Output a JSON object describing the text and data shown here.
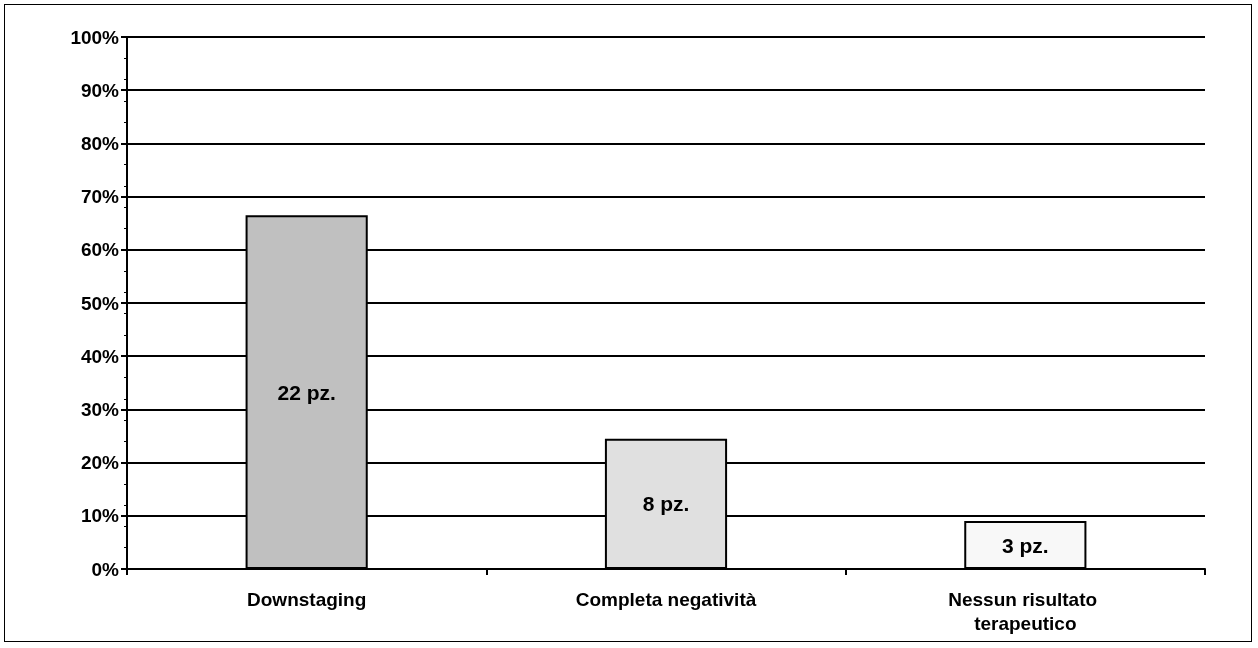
{
  "chart_data": {
    "type": "bar",
    "categories": [
      "Downstaging",
      "Completa negatività",
      "Nessun risultato terapeutico"
    ],
    "values": [
      66.5,
      24.5,
      9
    ],
    "colors": [
      "#c0c0c0",
      "#e0e0e0",
      "#f8f8f8"
    ],
    "annotations": [
      "22 pz.",
      "8 pz.",
      "3 pz."
    ],
    "ylim": [
      0,
      100
    ],
    "yticks": [
      {
        "value": 0,
        "label": "0%"
      },
      {
        "value": 10,
        "label": "10%"
      },
      {
        "value": 20,
        "label": "20%"
      },
      {
        "value": 30,
        "label": "30%"
      },
      {
        "value": 40,
        "label": "40%"
      },
      {
        "value": 50,
        "label": "50%"
      },
      {
        "value": 60,
        "label": "60%"
      },
      {
        "value": 70,
        "label": "70%"
      },
      {
        "value": 80,
        "label": "80%"
      },
      {
        "value": 90,
        "label": "90%"
      },
      {
        "value": 100,
        "label": "100%"
      }
    ],
    "grid": "y"
  }
}
